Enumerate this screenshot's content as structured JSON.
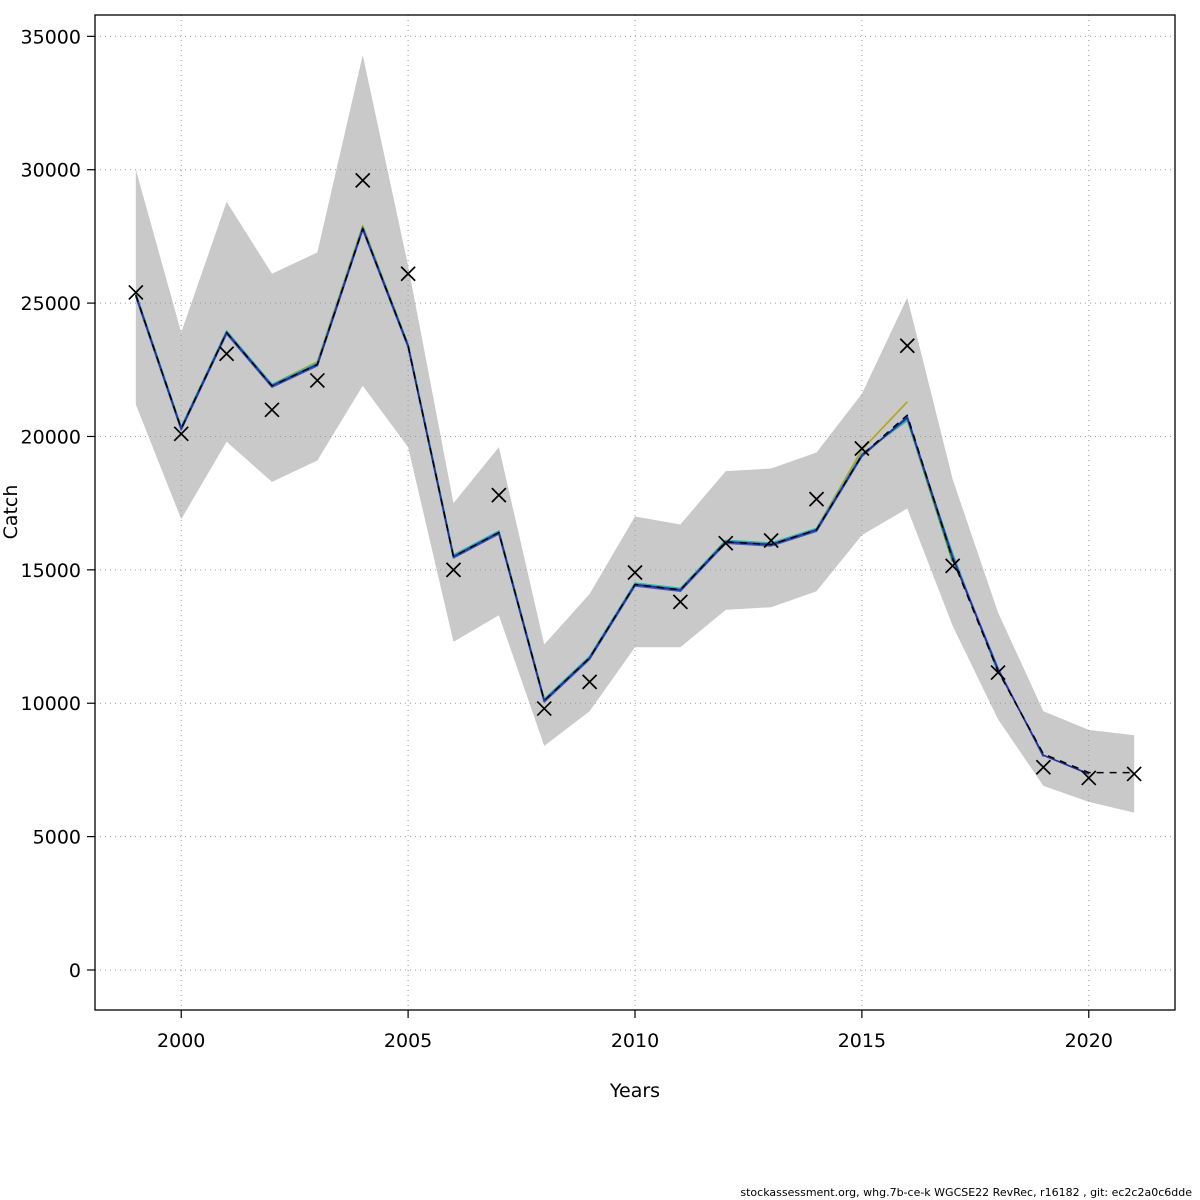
{
  "footer": {
    "text": "stockassessment.org, whg.7b-ce-k  WGCSE22  RevRec, r16182 , git: ec2c2a0c6dde"
  },
  "chart_data": {
    "type": "line",
    "title": "",
    "xlabel": "Years",
    "ylabel": "Catch",
    "grid": true,
    "legend": "none",
    "x": [
      1999,
      2000,
      2001,
      2002,
      2003,
      2004,
      2005,
      2006,
      2007,
      2008,
      2009,
      2010,
      2011,
      2012,
      2013,
      2014,
      2015,
      2016,
      2017,
      2018,
      2019,
      2020,
      2021
    ],
    "x_ticks": [
      2000,
      2005,
      2010,
      2015,
      2020
    ],
    "y_ticks": [
      0,
      5000,
      10000,
      15000,
      20000,
      25000,
      30000,
      35000
    ],
    "xlim": [
      1998.1,
      2021.9
    ],
    "ylim": [
      -1500,
      35800
    ],
    "band": {
      "name": "confidence-interval",
      "color": "#c9c9c9",
      "lo": [
        21200,
        16900,
        19800,
        18300,
        19100,
        21900,
        19600,
        12300,
        13300,
        8400,
        9700,
        12100,
        12100,
        13500,
        13600,
        14200,
        16300,
        17300,
        12900,
        9400,
        6900,
        6300,
        5900
      ],
      "hi": [
        30000,
        23900,
        28800,
        26100,
        26900,
        34300,
        26400,
        17500,
        19600,
        12200,
        14100,
        17000,
        16700,
        18700,
        18800,
        19400,
        21600,
        25200,
        18400,
        13400,
        9700,
        9000,
        8800
      ]
    },
    "observed": {
      "name": "observed-catch",
      "marker": "x",
      "color": "#000000",
      "values": [
        25400,
        20100,
        23100,
        21000,
        22100,
        29600,
        26100,
        15000,
        17800,
        9800,
        10800,
        14900,
        13800,
        16000,
        16100,
        17650,
        19550,
        23400,
        15150,
        11150,
        7600,
        7200,
        7350
      ]
    },
    "series": [
      {
        "name": "run-olive",
        "color": "#b5a520",
        "dash": null,
        "values": [
          25350,
          20350,
          23950,
          21950,
          22800,
          27900,
          23450,
          15550,
          16450,
          10150,
          11750,
          14500,
          14300,
          16100,
          16000,
          16550,
          19500,
          21300
        ]
      },
      {
        "name": "run-green",
        "color": "#2f9e44",
        "dash": null,
        "values": [
          25300,
          20300,
          23900,
          21900,
          22750,
          27800,
          23400,
          15500,
          16400,
          10100,
          11700,
          14450,
          14250,
          16050,
          15950,
          16500,
          19300,
          20650,
          15300
        ]
      },
      {
        "name": "run-cyan",
        "color": "#2ab5ad",
        "dash": null,
        "values": [
          25350,
          20350,
          23950,
          21950,
          22750,
          27850,
          23450,
          15550,
          16450,
          10150,
          11750,
          14500,
          14300,
          16100,
          16000,
          16550,
          19350,
          20600,
          15600,
          11150
        ]
      },
      {
        "name": "run-blue",
        "color": "#3956c9",
        "dash": null,
        "values": [
          25250,
          20250,
          23850,
          21850,
          22650,
          27750,
          23350,
          15450,
          16350,
          10050,
          11650,
          14400,
          14200,
          16000,
          15900,
          16450,
          19250,
          20750,
          15500,
          11300,
          8000
        ]
      },
      {
        "name": "run-navy",
        "color": "#23319b",
        "dash": null,
        "values": [
          25300,
          20300,
          23900,
          21900,
          22700,
          27800,
          23400,
          15500,
          16400,
          10100,
          11700,
          14450,
          14250,
          16050,
          15950,
          16500,
          19300,
          20700,
          15450,
          11250,
          8050,
          7350
        ]
      },
      {
        "name": "fit-final-dashed",
        "color": "#000000",
        "dash": "7 6",
        "values": [
          25300,
          20300,
          23900,
          21900,
          22700,
          27800,
          23400,
          15500,
          16400,
          10100,
          11700,
          14450,
          14250,
          16050,
          15950,
          16500,
          19300,
          20800,
          15400,
          11200,
          8100,
          7400,
          7400
        ]
      }
    ]
  }
}
